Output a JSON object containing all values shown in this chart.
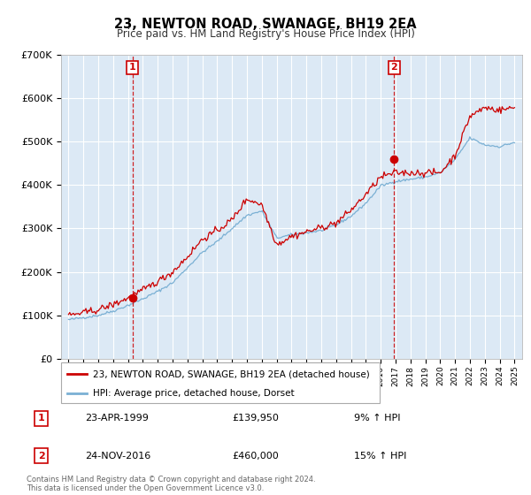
{
  "title": "23, NEWTON ROAD, SWANAGE, BH19 2EA",
  "subtitle": "Price paid vs. HM Land Registry's House Price Index (HPI)",
  "background_color": "#dce9f5",
  "fig_bg_color": "#ffffff",
  "red_color": "#cc0000",
  "blue_color": "#7ab0d4",
  "grid_color": "#ffffff",
  "transaction1_date_x": 1999.31,
  "transaction1_price": 139950,
  "transaction2_date_x": 2016.9,
  "transaction2_price": 460000,
  "legend_label_red": "23, NEWTON ROAD, SWANAGE, BH19 2EA (detached house)",
  "legend_label_blue": "HPI: Average price, detached house, Dorset",
  "table_rows": [
    [
      "1",
      "23-APR-1999",
      "£139,950",
      "9% ↑ HPI"
    ],
    [
      "2",
      "24-NOV-2016",
      "£460,000",
      "15% ↑ HPI"
    ]
  ],
  "footer": "Contains HM Land Registry data © Crown copyright and database right 2024.\nThis data is licensed under the Open Government Licence v3.0.",
  "ylim": [
    0,
    700000
  ],
  "yticks": [
    0,
    100000,
    200000,
    300000,
    400000,
    500000,
    600000,
    700000
  ],
  "ytick_labels": [
    "£0",
    "£100K",
    "£200K",
    "£300K",
    "£400K",
    "£500K",
    "£600K",
    "£700K"
  ],
  "xtick_years": [
    1995,
    1996,
    1997,
    1998,
    1999,
    2000,
    2001,
    2002,
    2003,
    2004,
    2005,
    2006,
    2007,
    2008,
    2009,
    2010,
    2011,
    2012,
    2013,
    2014,
    2015,
    2016,
    2017,
    2018,
    2019,
    2020,
    2021,
    2022,
    2023,
    2024,
    2025
  ],
  "xlim_left": 1994.5,
  "xlim_right": 2025.5,
  "hpi_control_years": [
    1995,
    1996,
    1997,
    1998,
    1999,
    2000,
    2001,
    2002,
    2003,
    2004,
    2005,
    2006,
    2007,
    2008,
    2009,
    2010,
    2011,
    2012,
    2013,
    2014,
    2015,
    2016,
    2017,
    2018,
    2019,
    2020,
    2021,
    2022,
    2023,
    2024,
    2025
  ],
  "hpi_control_vals": [
    90000,
    95000,
    100000,
    110000,
    123000,
    138000,
    155000,
    175000,
    210000,
    245000,
    270000,
    300000,
    330000,
    340000,
    278000,
    285000,
    290000,
    295000,
    308000,
    328000,
    358000,
    398000,
    408000,
    413000,
    418000,
    428000,
    458000,
    508000,
    492000,
    488000,
    498000
  ],
  "prop_control_years": [
    1995,
    1996,
    1997,
    1998,
    1999,
    2000,
    2001,
    2002,
    2003,
    2004,
    2005,
    2006,
    2007,
    2008,
    2009,
    2010,
    2011,
    2012,
    2013,
    2014,
    2015,
    2016,
    2017,
    2018,
    2019,
    2020,
    2021,
    2022,
    2023,
    2024,
    2025
  ],
  "prop_control_vals": [
    100000,
    106000,
    113000,
    125000,
    140000,
    158000,
    178000,
    200000,
    235000,
    275000,
    295000,
    320000,
    368000,
    355000,
    263000,
    282000,
    292000,
    302000,
    312000,
    342000,
    378000,
    418000,
    428000,
    428000,
    428000,
    428000,
    468000,
    558000,
    578000,
    572000,
    578000
  ],
  "hpi_noise_std": 1500,
  "prop_noise_std": 4000,
  "noise_seed": 42
}
